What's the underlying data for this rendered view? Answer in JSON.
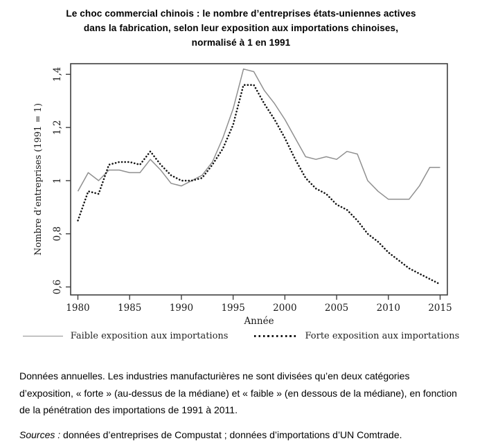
{
  "page_title": {
    "line1": "Le choc commercial chinois : le nombre d’entreprises états-uniennes actives",
    "line2": "dans la fabrication, selon leur exposition aux importations chinoises,",
    "line3": "normalisé à 1 en 1991"
  },
  "chart_data": {
    "type": "line",
    "title": "Le choc commercial chinois : le nombre d’entreprises états-uniennes actives dans la fabrication, selon leur exposition aux importations chinoises, normalisé à 1 en 1991",
    "xlabel": "Année",
    "ylabel": "Nombre d’entreprises  (1991 = 1)",
    "x": [
      1980,
      1981,
      1982,
      1983,
      1984,
      1985,
      1986,
      1987,
      1988,
      1989,
      1990,
      1991,
      1992,
      1993,
      1994,
      1995,
      1996,
      1997,
      1998,
      1999,
      2000,
      2001,
      2002,
      2003,
      2004,
      2005,
      2006,
      2007,
      2008,
      2009,
      2010,
      2011,
      2012,
      2013,
      2014,
      2015
    ],
    "series": [
      {
        "name": "Faible exposition aux importations",
        "style": "solid",
        "color": "#8f8f8f",
        "values": [
          0.96,
          1.03,
          1.0,
          1.04,
          1.04,
          1.03,
          1.03,
          1.08,
          1.04,
          0.99,
          0.98,
          1.0,
          1.02,
          1.07,
          1.16,
          1.27,
          1.42,
          1.41,
          1.34,
          1.29,
          1.23,
          1.16,
          1.09,
          1.08,
          1.09,
          1.08,
          1.11,
          1.1,
          1.0,
          0.96,
          0.93,
          0.93,
          0.93,
          0.98,
          1.05,
          1.05
        ]
      },
      {
        "name": "Forte exposition aux importations",
        "style": "dotted",
        "color": "#151515",
        "values": [
          0.85,
          0.96,
          0.95,
          1.06,
          1.07,
          1.07,
          1.06,
          1.11,
          1.06,
          1.02,
          1.0,
          1.0,
          1.01,
          1.06,
          1.12,
          1.21,
          1.36,
          1.36,
          1.29,
          1.23,
          1.16,
          1.08,
          1.01,
          0.97,
          0.95,
          0.91,
          0.89,
          0.85,
          0.8,
          0.77,
          0.73,
          0.7,
          0.67,
          0.65,
          0.63,
          0.61
        ]
      }
    ],
    "xticks": [
      1980,
      1985,
      1990,
      1995,
      2000,
      2005,
      2010,
      2015
    ],
    "yticks": [
      0.6,
      0.8,
      1,
      1.2,
      1.4
    ],
    "ytick_labels": [
      "0,6",
      "0,8",
      "1",
      "1,2",
      "1,4"
    ],
    "xlim": [
      1979.3,
      2015.7
    ],
    "ylim": [
      0.57,
      1.44
    ],
    "grid": false,
    "legend_position": "bottom-center",
    "frame_color": "#3f3f3f"
  },
  "legend": {
    "items": [
      {
        "label": "Faible exposition aux importations",
        "style": "solid"
      },
      {
        "label": "Forte exposition aux importations",
        "style": "dotted"
      }
    ]
  },
  "footer": {
    "note": "Données annuelles. Les industries manufacturières ne sont divisées qu’en deux catégories d’exposition, « forte » (au-dessus de la médiane) et « faible » (en dessous de la médiane), en fonction de la pénétration des importations de 1991 à 2011.",
    "sources_label": "Sources :",
    "sources_text": " données d’entreprises de Compustat ; données d’importations d’UN Comtrade."
  }
}
